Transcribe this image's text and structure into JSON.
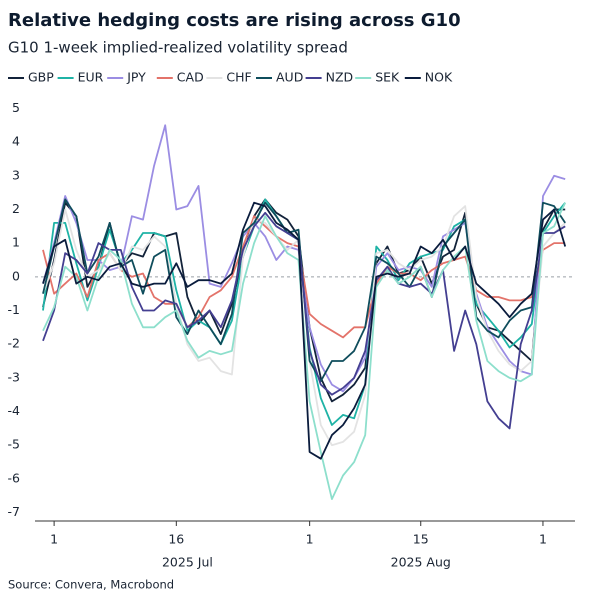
{
  "chart_data": {
    "type": "line",
    "title": "Relative hedging costs are rising across G10",
    "subtitle": "G10 1-week implied-realized volatility spread",
    "source": "Source: Convera, Macrobond",
    "x": [
      "2025-06-30",
      "2025-07-01",
      "2025-07-02",
      "2025-07-03",
      "2025-07-04",
      "2025-07-07",
      "2025-07-08",
      "2025-07-09",
      "2025-07-10",
      "2025-07-11",
      "2025-07-14",
      "2025-07-15",
      "2025-07-16",
      "2025-07-17",
      "2025-07-18",
      "2025-07-21",
      "2025-07-22",
      "2025-07-23",
      "2025-07-24",
      "2025-07-25",
      "2025-07-28",
      "2025-07-29",
      "2025-07-30",
      "2025-07-31",
      "2025-08-01",
      "2025-08-04",
      "2025-08-05",
      "2025-08-06",
      "2025-08-07",
      "2025-08-08",
      "2025-08-11",
      "2025-08-12",
      "2025-08-13",
      "2025-08-14",
      "2025-08-15",
      "2025-08-18",
      "2025-08-19",
      "2025-08-20",
      "2025-08-21",
      "2025-08-22",
      "2025-08-25",
      "2025-08-26",
      "2025-08-27",
      "2025-08-28",
      "2025-08-29",
      "2025-09-01",
      "2025-09-02",
      "2025-09-03"
    ],
    "xticks": [
      {
        "value": "2025-07-01",
        "label": "1"
      },
      {
        "value": "2025-07-16",
        "label": "16"
      },
      {
        "value": "2025-08-01",
        "label": "1"
      },
      {
        "value": "2025-08-15",
        "label": "15"
      },
      {
        "value": "2025-09-01",
        "label": "1"
      }
    ],
    "xgroups": [
      {
        "value": "2025-07-17",
        "label": "2025 Jul"
      },
      {
        "value": "2025-08-15",
        "label": "2025 Aug"
      }
    ],
    "ylim": [
      -7.25,
      5.25
    ],
    "yticks": [
      -7,
      -6,
      -5,
      -4,
      -3,
      -2,
      -1,
      0,
      1,
      2,
      3,
      4,
      5
    ],
    "reference_line": 0,
    "series": [
      {
        "name": "GBP",
        "color": "#13233a",
        "values": [
          -0.9,
          0.5,
          2.2,
          1.8,
          -0.3,
          0.3,
          1.6,
          0.3,
          0.7,
          0.6,
          1.3,
          1.2,
          1.3,
          -0.6,
          -1.4,
          -1.0,
          -1.7,
          -0.8,
          0.6,
          1.8,
          2.3,
          1.9,
          1.7,
          1.2,
          -1.5,
          -3.0,
          -3.7,
          -3.5,
          -3.2,
          -2.7,
          0.4,
          0.9,
          0.1,
          0.2,
          0.6,
          -0.2,
          0.6,
          0.8,
          1.9,
          -0.8,
          -1.5,
          -1.6,
          -1.9,
          -2.2,
          -2.5,
          1.4,
          2.0,
          2.0
        ]
      },
      {
        "name": "EUR",
        "color": "#1fb3a6",
        "values": [
          -1.0,
          1.6,
          1.6,
          0.4,
          -0.7,
          0.3,
          1.4,
          0.4,
          0.8,
          1.3,
          1.3,
          1.2,
          -0.4,
          -1.6,
          -1.3,
          -1.5,
          -2.0,
          -1.3,
          0.6,
          1.5,
          2.3,
          1.8,
          1.3,
          1.1,
          -2.1,
          -3.6,
          -4.4,
          -4.1,
          -4.2,
          -3.2,
          0.9,
          0.5,
          -0.1,
          0.4,
          0.6,
          0.7,
          0.8,
          1.5,
          1.7,
          -0.8,
          -1.2,
          -1.6,
          -2.1,
          -1.8,
          -1.4,
          1.3,
          1.8,
          2.2
        ]
      },
      {
        "name": "JPY",
        "color": "#9b8de3",
        "values": [
          -0.2,
          1.0,
          2.4,
          1.6,
          0.5,
          0.5,
          0.2,
          0.3,
          1.8,
          1.7,
          3.3,
          4.5,
          2.0,
          2.1,
          2.7,
          -0.2,
          -0.3,
          0.4,
          1.2,
          1.6,
          1.2,
          0.5,
          0.9,
          0.8,
          -1.5,
          -2.6,
          -3.2,
          -3.4,
          -3.0,
          -2.4,
          0.3,
          0.7,
          0.2,
          0.3,
          0.2,
          -0.3,
          1.2,
          1.4,
          1.6,
          -0.5,
          -1.5,
          -2.0,
          -2.5,
          -2.8,
          -2.9,
          2.4,
          3.0,
          2.9
        ]
      },
      {
        "name": "CAD",
        "color": "#e3736a",
        "values": [
          0.8,
          -0.5,
          -0.2,
          0.1,
          -0.6,
          0.5,
          0.7,
          0.2,
          0.0,
          0.1,
          -0.6,
          -0.8,
          -0.8,
          -1.5,
          -1.2,
          -0.6,
          -0.4,
          0.0,
          0.9,
          1.8,
          1.5,
          1.2,
          1.0,
          0.9,
          -1.1,
          -1.4,
          -1.6,
          -1.8,
          -1.5,
          -1.5,
          -0.2,
          0.3,
          0.1,
          0.1,
          -0.1,
          0.2,
          0.4,
          0.5,
          0.6,
          -0.4,
          -0.6,
          -0.6,
          -0.7,
          -0.7,
          -0.6,
          0.8,
          1.0,
          1.0
        ]
      },
      {
        "name": "CHF",
        "color": "#e3e3e3",
        "values": [
          -0.5,
          0.4,
          2.0,
          0.8,
          0.0,
          0.2,
          0.7,
          0.2,
          0.9,
          0.8,
          1.2,
          0.9,
          -0.8,
          -2.0,
          -2.5,
          -2.4,
          -2.8,
          -2.9,
          0.6,
          1.7,
          1.6,
          1.2,
          0.8,
          1.1,
          -2.5,
          -4.4,
          -5.0,
          -4.9,
          -4.6,
          -3.5,
          0.7,
          0.8,
          0.4,
          0.2,
          0.5,
          0.6,
          0.9,
          1.8,
          2.1,
          -0.6,
          -1.6,
          -2.2,
          -2.6,
          -2.8,
          -2.5,
          0.9,
          1.3,
          1.6
        ]
      },
      {
        "name": "AUD",
        "color": "#0f4d5c",
        "values": [
          -0.5,
          0.9,
          2.3,
          1.8,
          0.1,
          0.6,
          1.6,
          0.3,
          0.5,
          -0.5,
          0.6,
          0.8,
          -1.2,
          -1.7,
          -1.0,
          -1.5,
          -2.0,
          -1.1,
          1.3,
          1.6,
          2.2,
          1.8,
          1.3,
          1.4,
          -2.5,
          -3.1,
          -2.5,
          -2.5,
          -2.2,
          -1.5,
          0.6,
          0.4,
          0.1,
          -0.3,
          0.3,
          -0.6,
          0.9,
          1.3,
          1.7,
          -1.2,
          -1.6,
          -1.8,
          -1.3,
          -1.0,
          -0.9,
          2.2,
          2.1,
          1.6
        ]
      },
      {
        "name": "NZD",
        "color": "#443f91",
        "values": [
          -1.9,
          -1.0,
          0.7,
          0.5,
          0.1,
          1.0,
          0.8,
          0.8,
          -0.3,
          -1.0,
          -1.0,
          -0.7,
          -0.8,
          -1.5,
          -1.3,
          -1.0,
          -1.5,
          -0.7,
          0.8,
          1.5,
          1.9,
          1.5,
          1.3,
          1.1,
          -2.2,
          -3.2,
          -3.5,
          -3.3,
          -3.0,
          -2.2,
          -0.1,
          0.3,
          -0.2,
          -0.3,
          -0.2,
          -0.5,
          0.2,
          -2.2,
          -1.0,
          -2.0,
          -3.7,
          -4.2,
          -4.5,
          -2.0,
          -1.0,
          1.3,
          1.3,
          1.5
        ]
      },
      {
        "name": "SEK",
        "color": "#8ddfcc",
        "values": [
          -1.6,
          -0.9,
          0.3,
          0.0,
          -1.0,
          0.0,
          0.8,
          0.5,
          -0.8,
          -1.5,
          -1.5,
          -1.2,
          -1.0,
          -1.9,
          -2.4,
          -2.2,
          -2.3,
          -2.2,
          -0.2,
          1.0,
          1.8,
          1.2,
          0.7,
          0.5,
          -3.7,
          -5.2,
          -6.6,
          -5.9,
          -5.5,
          -4.7,
          -0.3,
          0.2,
          -0.2,
          0.0,
          0.3,
          -0.6,
          0.2,
          0.6,
          0.9,
          -1.3,
          -2.5,
          -2.8,
          -3.0,
          -3.1,
          -2.9,
          1.3,
          1.5,
          2.2
        ]
      },
      {
        "name": "NOK",
        "color": "#0a1c3d",
        "values": [
          -0.2,
          0.9,
          1.1,
          -0.2,
          0.0,
          -0.1,
          0.3,
          0.4,
          -0.2,
          -0.3,
          -0.2,
          -0.2,
          0.4,
          -0.3,
          -0.1,
          -0.1,
          -0.2,
          0.1,
          1.4,
          2.2,
          2.1,
          1.6,
          1.4,
          1.1,
          -5.2,
          -5.4,
          -4.7,
          -4.4,
          -3.9,
          -3.2,
          0.0,
          0.1,
          0.0,
          0.1,
          0.9,
          0.7,
          1.1,
          0.5,
          0.9,
          -0.2,
          -0.5,
          -0.8,
          -1.2,
          -0.8,
          -0.5,
          1.7,
          2.0,
          0.9
        ]
      }
    ]
  }
}
